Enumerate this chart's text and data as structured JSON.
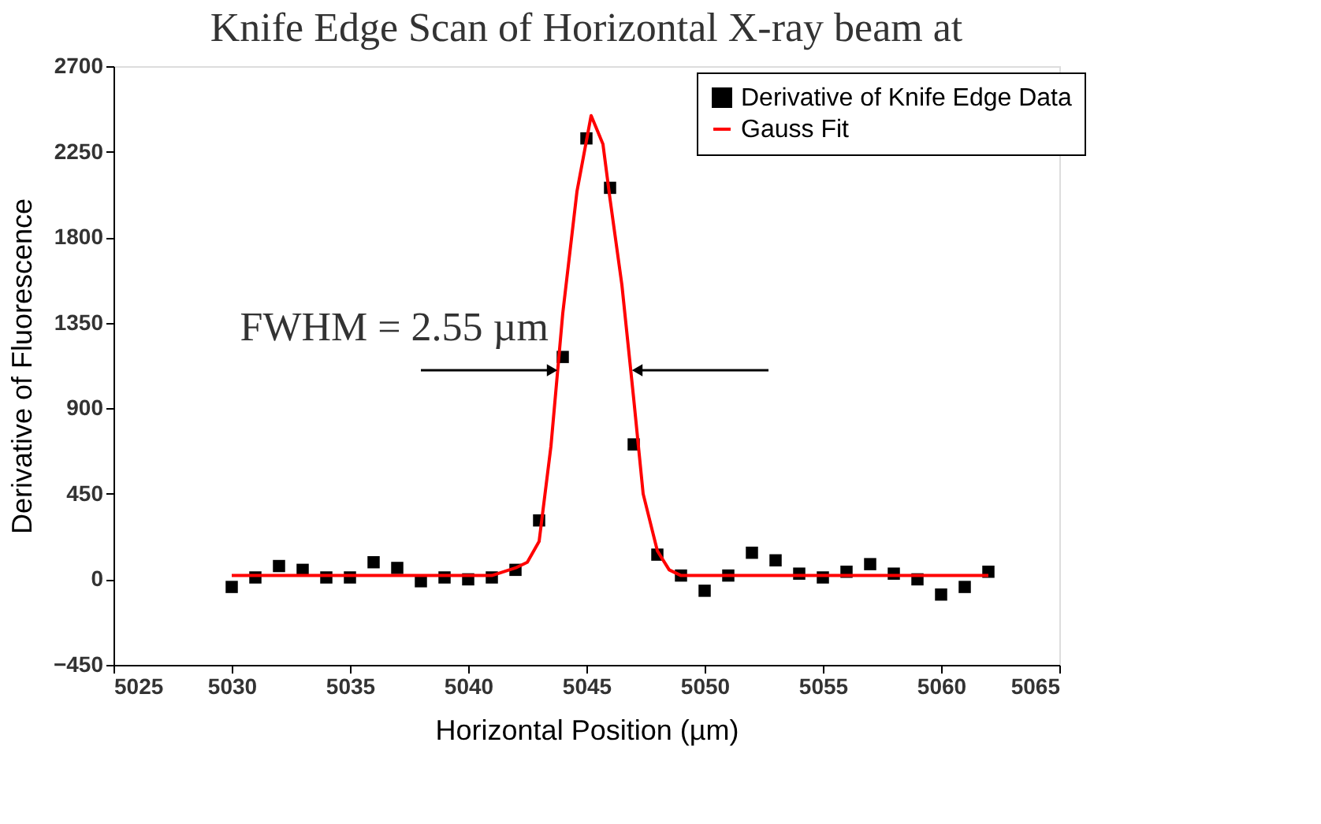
{
  "chart_data": {
    "type": "scatter",
    "title": "Knife Edge Scan of Horizontal X-ray beam at",
    "xlabel": "Horizontal Position (µm)",
    "ylabel": "Derivative of Fluorescence",
    "xlim": [
      5025,
      5065
    ],
    "xticks": [
      5025,
      5030,
      5035,
      5040,
      5045,
      5050,
      5055,
      5060,
      5065
    ],
    "ylim": [
      -450,
      2700
    ],
    "yticks": [
      -450,
      0,
      450,
      900,
      1350,
      1800,
      2250,
      2700
    ],
    "grid": false,
    "legend": "top right",
    "series": [
      {
        "name": "Derivative of Knife Edge Data",
        "marker": "square",
        "color": "#000000",
        "x": [
          5030,
          5031,
          5032,
          5033,
          5034,
          5035,
          5036,
          5037,
          5038,
          5039,
          5040,
          5041,
          5042,
          5043,
          5044,
          5045,
          5046,
          5047,
          5048,
          5049,
          5050,
          5051,
          5052,
          5053,
          5054,
          5055,
          5056,
          5057,
          5058,
          5059,
          5060,
          5061,
          5062
        ],
        "values": [
          -40,
          10,
          70,
          50,
          10,
          10,
          90,
          60,
          -10,
          10,
          0,
          10,
          50,
          310,
          1170,
          2320,
          2060,
          710,
          130,
          20,
          -60,
          20,
          140,
          100,
          30,
          10,
          40,
          80,
          30,
          0,
          -80,
          -40,
          40
        ]
      },
      {
        "name": "Gauss Fit",
        "type": "line",
        "marker": "none",
        "line_style": "solid",
        "color": "#ff0000",
        "x": [
          5030,
          5041,
          5042,
          5042.5,
          5043,
          5043.5,
          5044,
          5044.6,
          5045.2,
          5045.7,
          5046,
          5046.5,
          5047,
          5047.4,
          5048,
          5048.5,
          5049,
          5062
        ],
        "values": [
          20,
          20,
          60,
          90,
          200,
          700,
          1400,
          2040,
          2440,
          2290,
          2000,
          1550,
          950,
          450,
          150,
          50,
          20,
          20
        ]
      }
    ],
    "annotations": [
      {
        "text": "FWHM = 2.55 µm",
        "x": 5043.8,
        "y": 1100
      }
    ]
  }
}
